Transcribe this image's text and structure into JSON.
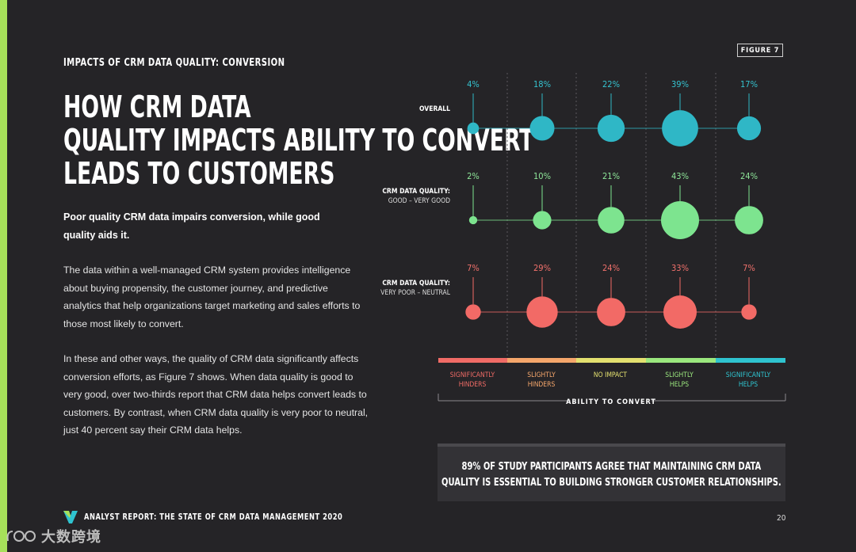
{
  "page": {
    "eyebrow": "IMPACTS OF CRM DATA QUALITY: CONVERSION",
    "headline": "HOW CRM DATA QUALITY IMPACTS ABILITY TO CONVERT LEADS TO CUSTOMERS",
    "lead": "Poor quality CRM data impairs conversion, while good quality aids it.",
    "paragraph1": "The data within a well-managed CRM system provides intelligence about buying propensity, the customer journey, and predictive analytics that help organizations target marketing and sales efforts to those most likely to convert.",
    "paragraph2": "In these and other ways, the quality of CRM data significantly affects conversion efforts, as Figure 7 shows. When data quality is good to very good, over two-thirds report that CRM data helps convert leads to customers. By contrast, when CRM data quality is very poor to neutral, just 40 percent say their CRM data helps.",
    "figure_tag": "FIGURE 7",
    "callout": "89% OF STUDY PARTICIPANTS AGREE THAT MAINTAINING CRM DATA QUALITY IS ESSENTIAL TO BUILDING STRONGER CUSTOMER RELATIONSHIPS.",
    "footer": "ANALYST REPORT: THE STATE OF CRM DATA MANAGEMENT 2020",
    "page_number": "20",
    "watermark": "大数跨境",
    "logo_icon": "v-logo-icon",
    "accent_color": "#a6e05a"
  },
  "chart_data": {
    "type": "bubble",
    "title": "",
    "xlabel": "ABILITY TO CONVERT",
    "categories": [
      "SIGNIFICANTLY HINDERS",
      "SLIGHTLY HINDERS",
      "NO IMPACT",
      "SLIGHTLY HELPS",
      "SIGNIFICANTLY HELPS"
    ],
    "category_colors": [
      "#f06b66",
      "#f5a66b",
      "#e3e06f",
      "#9be77e",
      "#2fc3cf"
    ],
    "series": [
      {
        "name": "OVERALL",
        "sublabel": "",
        "color": "#2fb7c6",
        "labelColor": "#35c3d0",
        "values": [
          4,
          18,
          22,
          39,
          17
        ]
      },
      {
        "name": "CRM DATA QUALITY:",
        "sublabel": "GOOD – VERY GOOD",
        "color": "#7de48f",
        "labelColor": "#8fe89a",
        "values": [
          2,
          10,
          21,
          43,
          24
        ]
      },
      {
        "name": "CRM DATA QUALITY:",
        "sublabel": "VERY POOR – NEUTRAL",
        "color": "#f26a66",
        "labelColor": "#f2716c",
        "values": [
          7,
          29,
          24,
          33,
          7
        ]
      }
    ],
    "unit": "%"
  }
}
